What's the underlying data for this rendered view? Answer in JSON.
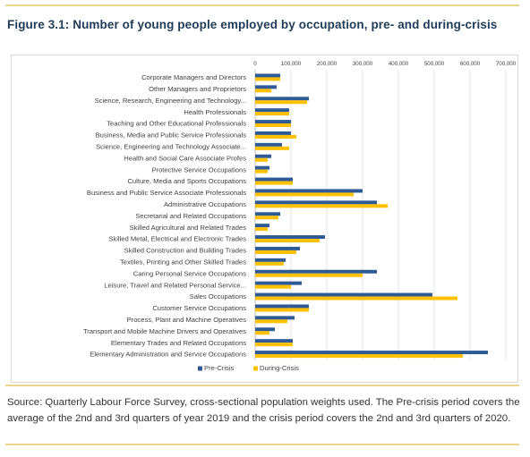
{
  "figure": {
    "title": "Figure 3.1: Number of young people employed by occupation, pre- and during-crisis",
    "source": "Source: Quarterly Labour Force Survey, cross-sectional population weights used. The Pre-crisis period covers the average of the 2nd and 3rd quarters of year 2019 and the crisis period covers the 2nd and 3rd quarters of 2020."
  },
  "colors": {
    "pre": "#2e5b96",
    "during": "#ffc000",
    "grid": "#e4e4e4",
    "text": "#404040",
    "rule": "#e9d68a",
    "title": "#1f3b57"
  },
  "chart_data": {
    "type": "bar",
    "orientation": "horizontal",
    "title": "",
    "xlabel": "",
    "ylabel": "",
    "xlim": [
      0,
      700000
    ],
    "x_ticks": [
      "0",
      "100,000",
      "200,000",
      "300,000",
      "400,000",
      "500,000",
      "600,000",
      "700,000"
    ],
    "x_axis_position": "top",
    "grid": true,
    "legend": "bottom",
    "categories": [
      "Corporate Managers and Directors",
      "Other Managers and Proprietors",
      "Science, Research, Engineering and Technology...",
      "Health Professionals",
      "Teaching and Other Educational Professionals",
      "Business, Media and Public Service Professionals",
      "Science, Engineering and Technology Associate...",
      "Health and Social Care Associate Profes",
      "Protective Service Occupations",
      "Culture, Media and Sports Occupations",
      "Business and Public Service Associate Professionals",
      "Administrative Occupations",
      "Secretarial and Related Occupations",
      "Skilled Agricultural and Related Trades",
      "Skilled Metal, Electrical and Electronic Trades",
      "Skilled Construction and Building Trades",
      "Textiles, Printing and Other Skilled Trades",
      "Caring Personal Service Occupations",
      "Leisure, Travel and Related Personal Service...",
      "Sales Occupations",
      "Customer Service Occupations",
      "Process, Plant and Machine Operatives",
      "Transport and Mobile Machine Drivers and Operatives",
      "Elementary Trades and Related Occupations",
      "Elementary Administration and Service Occupations"
    ],
    "series": [
      {
        "name": "Pre-Crisis",
        "values": [
          70000,
          60000,
          150000,
          95000,
          100000,
          100000,
          75000,
          45000,
          40000,
          105000,
          300000,
          340000,
          70000,
          40000,
          195000,
          125000,
          85000,
          340000,
          130000,
          495000,
          150000,
          110000,
          55000,
          105000,
          650000
        ]
      },
      {
        "name": "During-Crisis",
        "values": [
          70000,
          45000,
          145000,
          95000,
          100000,
          115000,
          95000,
          35000,
          35000,
          105000,
          275000,
          370000,
          65000,
          35000,
          180000,
          115000,
          80000,
          300000,
          100000,
          565000,
          150000,
          90000,
          40000,
          105000,
          580000
        ]
      }
    ]
  }
}
